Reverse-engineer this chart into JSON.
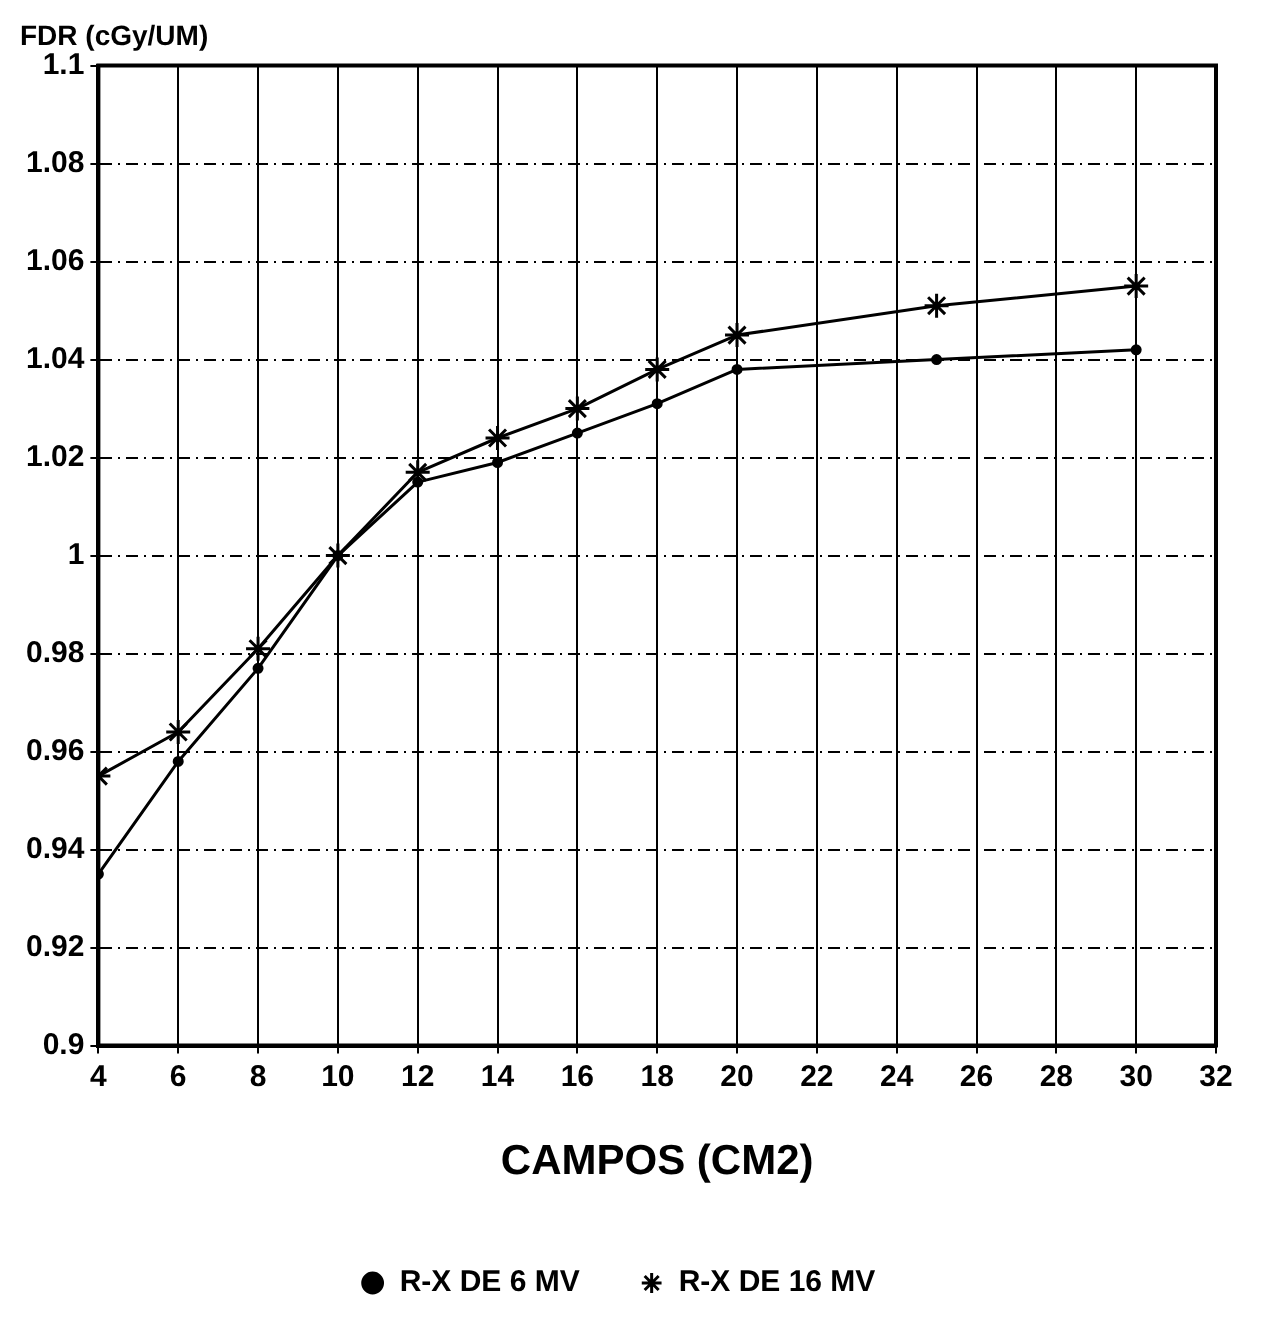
{
  "chart_data": {
    "type": "line",
    "ylabel": "FDR (cGy/UM)",
    "xlabel": "CAMPOS (CM2)",
    "x": [
      4,
      6,
      8,
      10,
      12,
      14,
      16,
      18,
      20,
      25,
      30
    ],
    "series": [
      {
        "name": "R-X DE 6 MV",
        "color": "#000000",
        "marker": "circle",
        "values": [
          0.935,
          0.958,
          0.977,
          1.0,
          1.015,
          1.019,
          1.025,
          1.031,
          1.038,
          1.04,
          1.042
        ]
      },
      {
        "name": "R-X DE 16 MV",
        "color": "#000000",
        "marker": "cross",
        "values": [
          0.955,
          0.964,
          0.981,
          1.0,
          1.017,
          1.024,
          1.03,
          1.038,
          1.045,
          1.051,
          1.055
        ]
      }
    ],
    "xlim": [
      4,
      32
    ],
    "xticks": [
      4,
      6,
      8,
      10,
      12,
      14,
      16,
      18,
      20,
      22,
      24,
      26,
      28,
      30,
      32
    ],
    "ylim": [
      0.9,
      1.1
    ],
    "yticks": [
      0.9,
      0.92,
      0.94,
      0.96,
      0.98,
      1,
      1.02,
      1.04,
      1.06,
      1.08,
      1.1
    ],
    "grid": true,
    "legend": "bottom",
    "line_style": "solid"
  }
}
